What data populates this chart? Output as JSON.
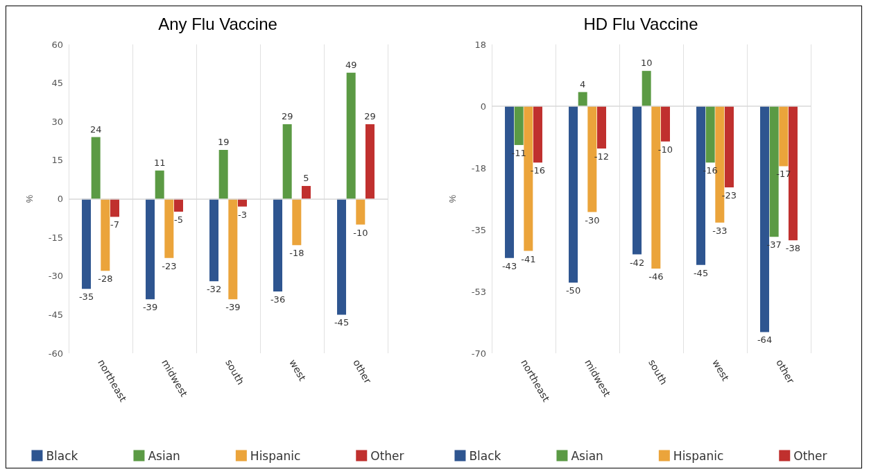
{
  "chart_data": [
    {
      "type": "bar",
      "title": "Any Flu Vaccine",
      "ylabel": "%",
      "categories": [
        "northeast",
        "midwest",
        "south",
        "west",
        "other"
      ],
      "series": [
        {
          "name": "Black",
          "color": "#2e5590",
          "values": [
            -35,
            -39,
            -32,
            -36,
            -45
          ]
        },
        {
          "name": "Asian",
          "color": "#5b9a44",
          "values": [
            24,
            11,
            19,
            29,
            49
          ]
        },
        {
          "name": "Hispanic",
          "color": "#eba43b",
          "values": [
            -28,
            -23,
            -39,
            -18,
            -10
          ]
        },
        {
          "name": "Other",
          "color": "#c0302e",
          "values": [
            -7,
            -5,
            -3,
            5,
            29
          ]
        }
      ],
      "ylim": [
        -60,
        60
      ],
      "yticks": [
        -60,
        -45,
        -30,
        -15,
        0,
        15,
        30,
        45,
        60
      ],
      "grid": "x",
      "legend": "bottom",
      "data_labels": true,
      "ref_lines": [
        {
          "axis": "y",
          "value": 0,
          "color": "#d9d9d9"
        }
      ]
    },
    {
      "type": "bar",
      "title": "HD Flu Vaccine",
      "ylabel": "%",
      "categories": [
        "northeast",
        "midwest",
        "south",
        "west",
        "other"
      ],
      "series": [
        {
          "name": "Black",
          "color": "#2e5590",
          "values": [
            -43,
            -50,
            -42,
            -45,
            -64
          ]
        },
        {
          "name": "Asian",
          "color": "#5b9a44",
          "values": [
            -11,
            4,
            10,
            -16,
            -37
          ]
        },
        {
          "name": "Hispanic",
          "color": "#eba43b",
          "values": [
            -41,
            -30,
            -46,
            -33,
            -17
          ]
        },
        {
          "name": "Other",
          "color": "#c0302e",
          "values": [
            -16,
            -12,
            -10,
            -23,
            -38
          ]
        }
      ],
      "ylim": [
        -70,
        17.5
      ],
      "yticks": [
        {
          "value": -70,
          "label": "-70"
        },
        {
          "value": -52.5,
          "label": "-53"
        },
        {
          "value": -35,
          "label": "-35"
        },
        {
          "value": -17.5,
          "label": "-18"
        },
        {
          "value": 0,
          "label": "0"
        },
        {
          "value": 17.5,
          "label": "18"
        }
      ],
      "grid": "x",
      "legend": "bottom",
      "data_labels": true,
      "ref_lines": [
        {
          "axis": "y",
          "value": 0,
          "color": "#d9d9d9"
        }
      ]
    }
  ]
}
